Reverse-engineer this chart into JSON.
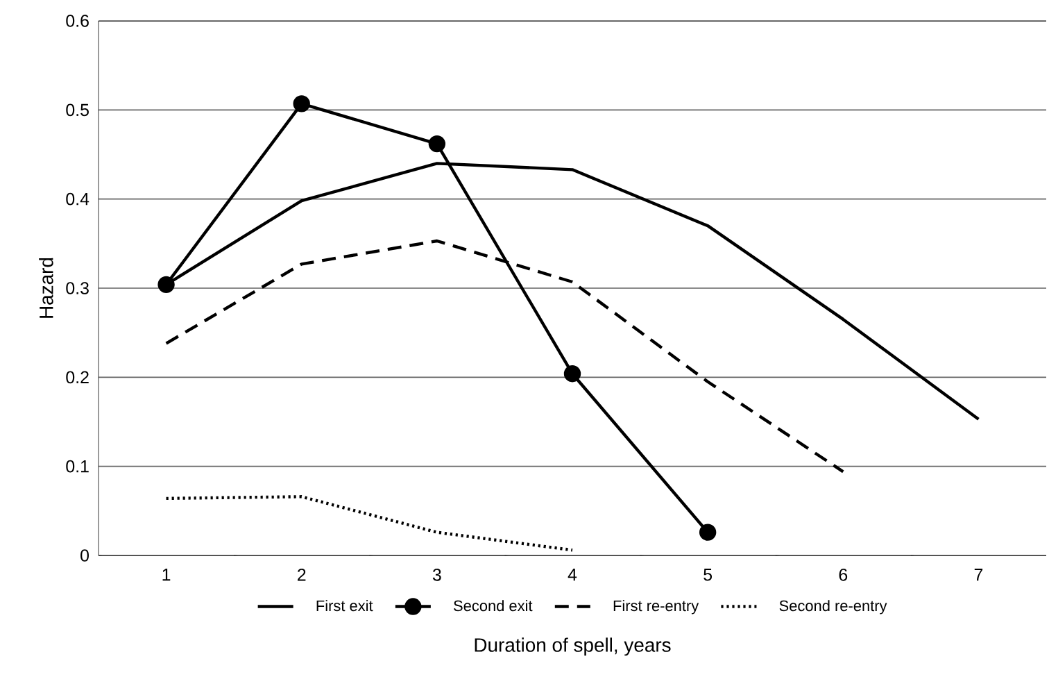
{
  "chart_data": {
    "type": "line",
    "xlabel": "Duration of spell, years",
    "ylabel": "Hazard",
    "categories": [
      "1",
      "2",
      "3",
      "4",
      "5",
      "6",
      "7"
    ],
    "series": [
      {
        "name": "First exit",
        "color": "#000000",
        "line_style": "solid",
        "marker": "none",
        "values": [
          0.304,
          0.398,
          0.44,
          0.433,
          0.37,
          0.265,
          0.153
        ]
      },
      {
        "name": "Second exit",
        "color": "#000000",
        "line_style": "solid",
        "marker": "circle",
        "values": [
          0.304,
          0.507,
          0.462,
          0.204,
          0.026,
          null,
          null
        ]
      },
      {
        "name": "First re-entry",
        "color": "#000000",
        "line_style": "dashed",
        "marker": "none",
        "values": [
          0.238,
          0.327,
          0.353,
          0.307,
          0.195,
          0.094,
          null
        ]
      },
      {
        "name": "Second re-entry",
        "color": "#000000",
        "line_style": "dotted",
        "marker": "none",
        "values": [
          0.064,
          0.066,
          0.026,
          0.006,
          null,
          null,
          null
        ]
      }
    ],
    "ylim": [
      0,
      0.6
    ],
    "yticks": [
      0,
      0.1,
      0.2,
      0.3,
      0.4,
      0.5,
      0.6
    ],
    "grid": "y",
    "legend": "bottom"
  }
}
